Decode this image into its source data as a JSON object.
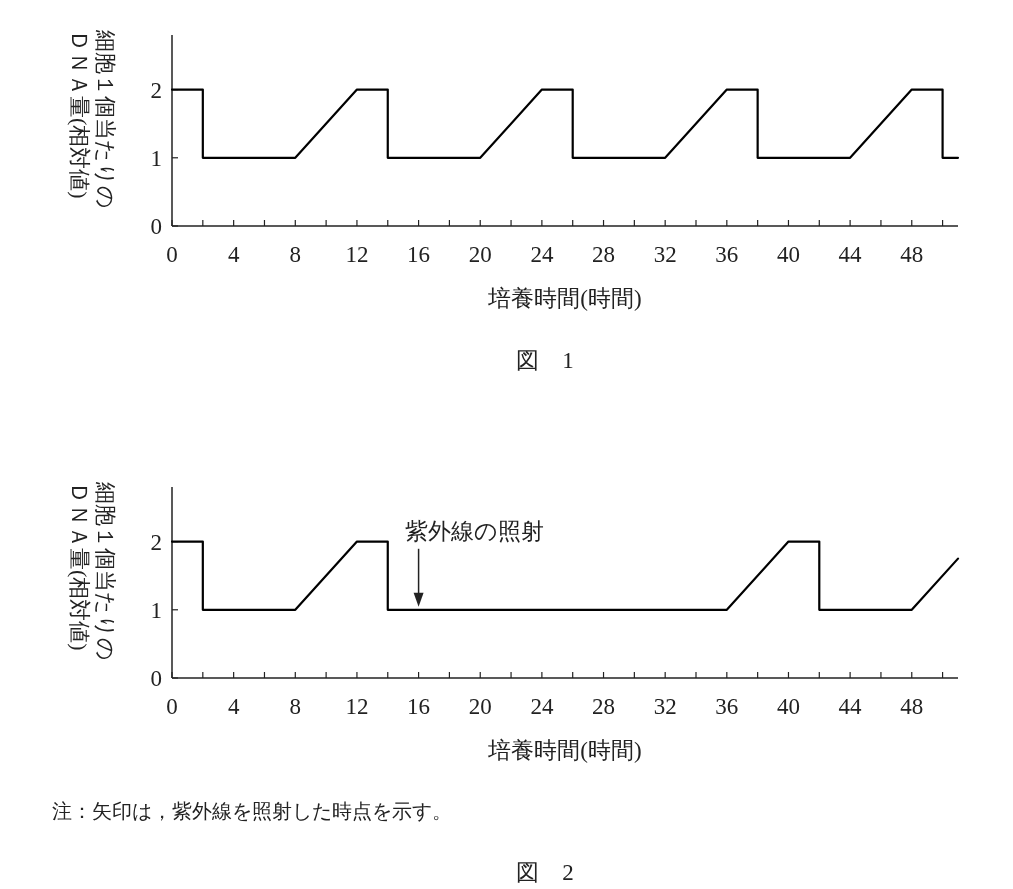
{
  "chart_data": [
    {
      "type": "line",
      "title": "図　1",
      "xlabel": "培養時間(時間)",
      "ylabel": "細胞１個当たりのＤＮＡ量(相対値)",
      "xlim": [
        0,
        51
      ],
      "ylim": [
        0,
        2.8
      ],
      "xticks": [
        0,
        {
          "value": 2,
          "label": null
        },
        4,
        {
          "value": 6,
          "label": null
        },
        8,
        {
          "value": 10,
          "label": null
        },
        12,
        {
          "value": 14,
          "label": null
        },
        16,
        {
          "value": 18,
          "label": null
        },
        20,
        {
          "value": 22,
          "label": null
        },
        24,
        {
          "value": 26,
          "label": null
        },
        28,
        {
          "value": 30,
          "label": null
        },
        32,
        {
          "value": 34,
          "label": null
        },
        36,
        {
          "value": 38,
          "label": null
        },
        40,
        {
          "value": 42,
          "label": null
        },
        44,
        {
          "value": 46,
          "label": null
        },
        48,
        {
          "value": 50,
          "label": null
        }
      ],
      "yticks": [
        0,
        1,
        2
      ],
      "grid": false,
      "series": [
        {
          "color": "#000000",
          "x": [
            0,
            2,
            2,
            8,
            12,
            14,
            14,
            20,
            24,
            26,
            26,
            32,
            36,
            38,
            38,
            44,
            48,
            50,
            50,
            51
          ],
          "values": [
            2,
            2,
            1,
            1,
            2,
            2,
            1,
            1,
            2,
            2,
            1,
            1,
            2,
            2,
            1,
            1,
            2,
            2,
            1,
            1
          ]
        }
      ]
    },
    {
      "type": "line",
      "title": "図　2",
      "xlabel": "培養時間(時間)",
      "ylabel": "細胞１個当たりのＤＮＡ量(相対値)",
      "xlim": [
        0,
        51
      ],
      "ylim": [
        0,
        2.8
      ],
      "xticks": [
        0,
        {
          "value": 2,
          "label": null
        },
        4,
        {
          "value": 6,
          "label": null
        },
        8,
        {
          "value": 10,
          "label": null
        },
        12,
        {
          "value": 14,
          "label": null
        },
        16,
        {
          "value": 18,
          "label": null
        },
        20,
        {
          "value": 22,
          "label": null
        },
        24,
        {
          "value": 26,
          "label": null
        },
        28,
        {
          "value": 30,
          "label": null
        },
        32,
        {
          "value": 34,
          "label": null
        },
        36,
        {
          "value": 38,
          "label": null
        },
        40,
        {
          "value": 42,
          "label": null
        },
        44,
        {
          "value": 46,
          "label": null
        },
        48,
        {
          "value": 50,
          "label": null
        }
      ],
      "yticks": [
        0,
        1,
        2
      ],
      "grid": false,
      "annotations": [
        {
          "text": "紫外線の照射",
          "x": 16,
          "y": 1
        },
        "注：矢印は，紫外線を照射した時点を示す。"
      ],
      "series": [
        {
          "color": "#000000",
          "x": [
            0,
            2,
            2,
            8,
            12,
            14,
            14,
            36,
            40,
            42,
            42,
            48,
            51
          ],
          "values": [
            2,
            2,
            1,
            1,
            2,
            2,
            1,
            1,
            2,
            2,
            1,
            1,
            1.75
          ]
        }
      ]
    }
  ]
}
